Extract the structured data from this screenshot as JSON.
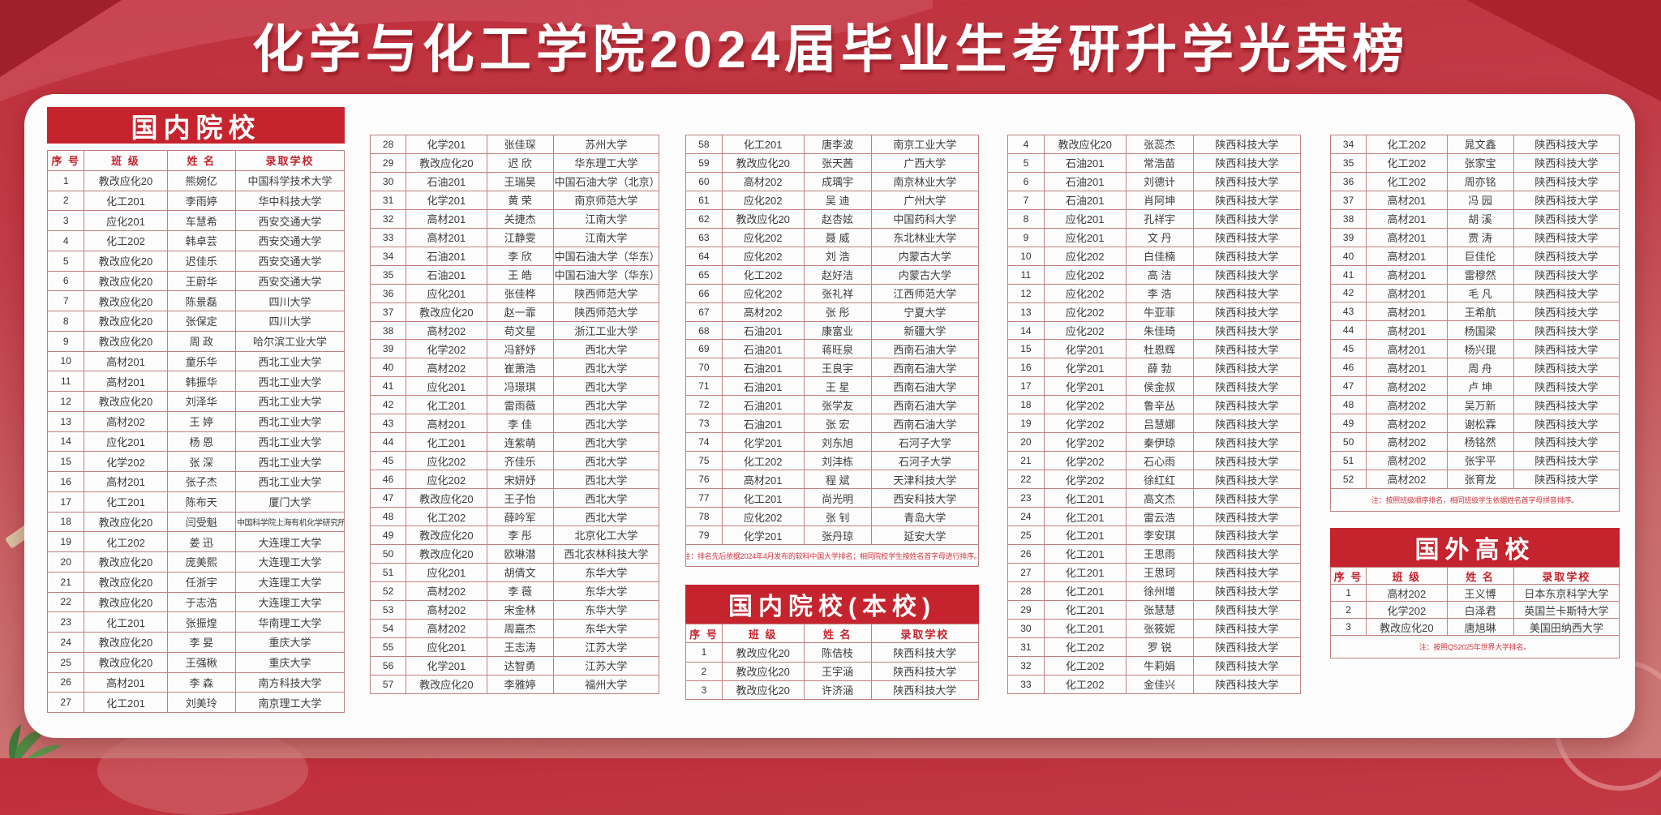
{
  "title": "化学与化工学院2024届毕业生考研升学光荣榜",
  "table_headers": [
    "序 号",
    "班 级",
    "姓 名",
    "录取学校"
  ],
  "sections": {
    "domestic": {
      "title": "国内院校",
      "note": "注：排名先后依据2024年4月发布的软科中国大学排名；相同院校学生按姓名首字母进行排序。",
      "rows": [
        [
          "1",
          "教改应化20",
          "熊婉亿",
          "中国科学技术大学"
        ],
        [
          "2",
          "化工201",
          "李雨婷",
          "华中科技大学"
        ],
        [
          "3",
          "应化201",
          "车慧希",
          "西安交通大学"
        ],
        [
          "4",
          "化工202",
          "韩卓芸",
          "西安交通大学"
        ],
        [
          "5",
          "教改应化20",
          "迟佳乐",
          "西安交通大学"
        ],
        [
          "6",
          "教改应化20",
          "王蔚华",
          "西安交通大学"
        ],
        [
          "7",
          "教改应化20",
          "陈景磊",
          "四川大学"
        ],
        [
          "8",
          "教改应化20",
          "张保定",
          "四川大学"
        ],
        [
          "9",
          "教改应化20",
          "周 政",
          "哈尔滨工业大学"
        ],
        [
          "10",
          "高材201",
          "童乐华",
          "西北工业大学"
        ],
        [
          "11",
          "高材201",
          "韩振华",
          "西北工业大学"
        ],
        [
          "12",
          "教改应化20",
          "刘泽华",
          "西北工业大学"
        ],
        [
          "13",
          "高材202",
          "王 婷",
          "西北工业大学"
        ],
        [
          "14",
          "应化201",
          "杨 恩",
          "西北工业大学"
        ],
        [
          "15",
          "化学202",
          "张 深",
          "西北工业大学"
        ],
        [
          "16",
          "高材201",
          "张子杰",
          "西北工业大学"
        ],
        [
          "17",
          "化工201",
          "陈布天",
          "厦门大学"
        ],
        [
          "18",
          "教改应化20",
          "闫受魁",
          "中国科学院上海有机化学研究所"
        ],
        [
          "19",
          "化工202",
          "姜 迅",
          "大连理工大学"
        ],
        [
          "20",
          "教改应化20",
          "庞美熙",
          "大连理工大学"
        ],
        [
          "21",
          "教改应化20",
          "任浙宇",
          "大连理工大学"
        ],
        [
          "22",
          "教改应化20",
          "于志浩",
          "大连理工大学"
        ],
        [
          "23",
          "化工201",
          "张振煌",
          "华南理工大学"
        ],
        [
          "24",
          "教改应化20",
          "李 妟",
          "重庆大学"
        ],
        [
          "25",
          "教改应化20",
          "王强楸",
          "重庆大学"
        ],
        [
          "26",
          "高材201",
          "李 森",
          "南方科技大学"
        ],
        [
          "27",
          "化工201",
          "刘美玲",
          "南京理工大学"
        ],
        [
          "28",
          "化学201",
          "张佳琛",
          "苏州大学"
        ],
        [
          "29",
          "教改应化20",
          "迟 欣",
          "华东理工大学"
        ],
        [
          "30",
          "石油201",
          "王瑞昊",
          "中国石油大学（北京）"
        ],
        [
          "31",
          "化学201",
          "黄 荣",
          "南京师范大学"
        ],
        [
          "32",
          "高材201",
          "关捷杰",
          "江南大学"
        ],
        [
          "33",
          "高材201",
          "江静雯",
          "江南大学"
        ],
        [
          "34",
          "石油201",
          "李 欣",
          "中国石油大学（华东）"
        ],
        [
          "35",
          "石油201",
          "王 皓",
          "中国石油大学（华东）"
        ],
        [
          "36",
          "应化201",
          "张佳桦",
          "陕西师范大学"
        ],
        [
          "37",
          "教改应化20",
          "赵一霏",
          "陕西师范大学"
        ],
        [
          "38",
          "高材202",
          "苟文星",
          "浙江工业大学"
        ],
        [
          "39",
          "化学202",
          "冯舒妤",
          "西北大学"
        ],
        [
          "40",
          "高材202",
          "崔萧浩",
          "西北大学"
        ],
        [
          "41",
          "应化201",
          "冯璟琪",
          "西北大学"
        ],
        [
          "42",
          "化工201",
          "雷雨薇",
          "西北大学"
        ],
        [
          "43",
          "高材201",
          "李 佳",
          "西北大学"
        ],
        [
          "44",
          "化工201",
          "连紫萌",
          "西北大学"
        ],
        [
          "45",
          "应化202",
          "齐佳乐",
          "西北大学"
        ],
        [
          "46",
          "应化202",
          "宋妍妤",
          "西北大学"
        ],
        [
          "47",
          "教改应化20",
          "王子怡",
          "西北大学"
        ],
        [
          "48",
          "化工202",
          "薛吟军",
          "西北大学"
        ],
        [
          "49",
          "教改应化20",
          "李 彤",
          "北京化工大学"
        ],
        [
          "50",
          "教改应化20",
          "欧琳潜",
          "西北农林科技大学"
        ],
        [
          "51",
          "应化201",
          "胡倩文",
          "东华大学"
        ],
        [
          "52",
          "高材202",
          "李 薇",
          "东华大学"
        ],
        [
          "53",
          "高材202",
          "宋金林",
          "东华大学"
        ],
        [
          "54",
          "高材202",
          "周嘉杰",
          "东华大学"
        ],
        [
          "55",
          "应化201",
          "王志涛",
          "江苏大学"
        ],
        [
          "56",
          "化学201",
          "达智勇",
          "江苏大学"
        ],
        [
          "57",
          "教改应化20",
          "李雅婷",
          "福州大学"
        ],
        [
          "58",
          "化工201",
          "唐李波",
          "南京工业大学"
        ],
        [
          "59",
          "教改应化20",
          "张天茜",
          "广西大学"
        ],
        [
          "60",
          "高材202",
          "成瑀宇",
          "南京林业大学"
        ],
        [
          "61",
          "应化202",
          "吴 迪",
          "广州大学"
        ],
        [
          "62",
          "教改应化20",
          "赵杏妶",
          "中国药科大学"
        ],
        [
          "63",
          "应化202",
          "聂 威",
          "东北林业大学"
        ],
        [
          "64",
          "应化202",
          "刘 浩",
          "内蒙古大学"
        ],
        [
          "65",
          "化工202",
          "赵好洁",
          "内蒙古大学"
        ],
        [
          "66",
          "应化202",
          "张礼祥",
          "江西师范大学"
        ],
        [
          "67",
          "高材202",
          "张 彤",
          "宁夏大学"
        ],
        [
          "68",
          "石油201",
          "康富业",
          "新疆大学"
        ],
        [
          "69",
          "石油201",
          "蒋旺泉",
          "西南石油大学"
        ],
        [
          "70",
          "石油201",
          "王良宇",
          "西南石油大学"
        ],
        [
          "71",
          "石油201",
          "王 星",
          "西南石油大学"
        ],
        [
          "72",
          "石油201",
          "张学友",
          "西南石油大学"
        ],
        [
          "73",
          "石油201",
          "张 宏",
          "西南石油大学"
        ],
        [
          "74",
          "化学201",
          "刘东旭",
          "石河子大学"
        ],
        [
          "75",
          "化工202",
          "刘沣栋",
          "石河子大学"
        ],
        [
          "76",
          "高材201",
          "程 斌",
          "天津科技大学"
        ],
        [
          "77",
          "化工201",
          "尚光明",
          "西安科技大学"
        ],
        [
          "78",
          "应化202",
          "张 钊",
          "青岛大学"
        ],
        [
          "79",
          "化学201",
          "张丹琼",
          "延安大学"
        ]
      ]
    },
    "local": {
      "title": "国内院校(本校)",
      "note": "注：按照班级顺序排名，相同班级学生依据姓名首字母拼音排序。",
      "rows": [
        [
          "1",
          "教改应化20",
          "陈佶枝",
          "陕西科技大学"
        ],
        [
          "2",
          "教改应化20",
          "王宇涵",
          "陕西科技大学"
        ],
        [
          "3",
          "教改应化20",
          "许济涵",
          "陕西科技大学"
        ],
        [
          "4",
          "教改应化20",
          "张蕊杰",
          "陕西科技大学"
        ],
        [
          "5",
          "石油201",
          "常浩苗",
          "陕西科技大学"
        ],
        [
          "6",
          "石油201",
          "刘德计",
          "陕西科技大学"
        ],
        [
          "7",
          "石油201",
          "肖阿坤",
          "陕西科技大学"
        ],
        [
          "8",
          "应化201",
          "孔祥宇",
          "陕西科技大学"
        ],
        [
          "9",
          "应化201",
          "文 丹",
          "陕西科技大学"
        ],
        [
          "10",
          "应化202",
          "白佳楠",
          "陕西科技大学"
        ],
        [
          "11",
          "应化202",
          "高 洁",
          "陕西科技大学"
        ],
        [
          "12",
          "应化202",
          "李 浩",
          "陕西科技大学"
        ],
        [
          "13",
          "应化202",
          "牛亚菲",
          "陕西科技大学"
        ],
        [
          "14",
          "应化202",
          "朱佳琦",
          "陕西科技大学"
        ],
        [
          "15",
          "化学201",
          "杜恩辉",
          "陕西科技大学"
        ],
        [
          "16",
          "化学201",
          "薛 勃",
          "陕西科技大学"
        ],
        [
          "17",
          "化学201",
          "侯金叔",
          "陕西科技大学"
        ],
        [
          "18",
          "化学202",
          "鲁辛丛",
          "陕西科技大学"
        ],
        [
          "19",
          "化学202",
          "吕慧娜",
          "陕西科技大学"
        ],
        [
          "20",
          "化学202",
          "秦伊琼",
          "陕西科技大学"
        ],
        [
          "21",
          "化学202",
          "石心雨",
          "陕西科技大学"
        ],
        [
          "22",
          "化学202",
          "徐红红",
          "陕西科技大学"
        ],
        [
          "23",
          "化工201",
          "高文杰",
          "陕西科技大学"
        ],
        [
          "24",
          "化工201",
          "雷云浩",
          "陕西科技大学"
        ],
        [
          "25",
          "化工201",
          "李安琪",
          "陕西科技大学"
        ],
        [
          "26",
          "化工201",
          "王思雨",
          "陕西科技大学"
        ],
        [
          "27",
          "化工201",
          "王思珂",
          "陕西科技大学"
        ],
        [
          "28",
          "化工201",
          "徐州增",
          "陕西科技大学"
        ],
        [
          "29",
          "化工201",
          "张慧慧",
          "陕西科技大学"
        ],
        [
          "30",
          "化工201",
          "张筱妮",
          "陕西科技大学"
        ],
        [
          "31",
          "化工202",
          "罗 锐",
          "陕西科技大学"
        ],
        [
          "32",
          "化工202",
          "牛莉娟",
          "陕西科技大学"
        ],
        [
          "33",
          "化工202",
          "金佳兴",
          "陕西科技大学"
        ],
        [
          "34",
          "化工202",
          "晁文鑫",
          "陕西科技大学"
        ],
        [
          "35",
          "化工202",
          "张家宝",
          "陕西科技大学"
        ],
        [
          "36",
          "化工202",
          "周亦铭",
          "陕西科技大学"
        ],
        [
          "37",
          "高材201",
          "冯 园",
          "陕西科技大学"
        ],
        [
          "38",
          "高材201",
          "胡 溪",
          "陕西科技大学"
        ],
        [
          "39",
          "高材201",
          "贾 涛",
          "陕西科技大学"
        ],
        [
          "40",
          "高材201",
          "巨佳伦",
          "陕西科技大学"
        ],
        [
          "41",
          "高材201",
          "雷穆然",
          "陕西科技大学"
        ],
        [
          "42",
          "高材201",
          "毛 凡",
          "陕西科技大学"
        ],
        [
          "43",
          "高材201",
          "王希航",
          "陕西科技大学"
        ],
        [
          "44",
          "高材201",
          "杨国梁",
          "陕西科技大学"
        ],
        [
          "45",
          "高材201",
          "杨兴琨",
          "陕西科技大学"
        ],
        [
          "46",
          "高材201",
          "周 舟",
          "陕西科技大学"
        ],
        [
          "47",
          "高材202",
          "卢 坤",
          "陕西科技大学"
        ],
        [
          "48",
          "高材202",
          "吴万新",
          "陕西科技大学"
        ],
        [
          "49",
          "高材202",
          "谢松霖",
          "陕西科技大学"
        ],
        [
          "50",
          "高材202",
          "杨铭然",
          "陕西科技大学"
        ],
        [
          "51",
          "高材202",
          "张宇平",
          "陕西科技大学"
        ],
        [
          "52",
          "高材202",
          "张育龙",
          "陕西科技大学"
        ]
      ]
    },
    "foreign": {
      "title": "国外高校",
      "note": "注：按照QS2025年世界大学排名。",
      "rows": [
        [
          "1",
          "高材202",
          "王义博",
          "日本东京科学大学"
        ],
        [
          "2",
          "化学202",
          "白泽君",
          "英国兰卡斯特大学"
        ],
        [
          "3",
          "教改应化20",
          "唐旭琳",
          "美国田纳西大学"
        ]
      ]
    }
  }
}
